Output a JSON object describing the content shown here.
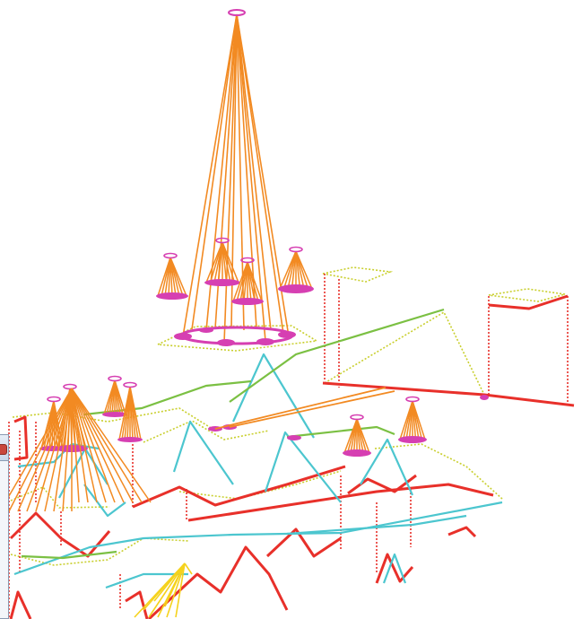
{
  "scene": {
    "description_type": "wireframe-3d-structure",
    "colors": {
      "wall_edge": "#e8302a",
      "wall_dotted": "#e8302a",
      "roof_cyan": "#4cc6cf",
      "roof_green": "#7bc043",
      "floor_dotted": "#c9cf2e",
      "cone": "#f28a22",
      "cone_base": "#d63fb2",
      "fan": "#f5d21c"
    },
    "icons": [
      "window-close-icon"
    ]
  }
}
